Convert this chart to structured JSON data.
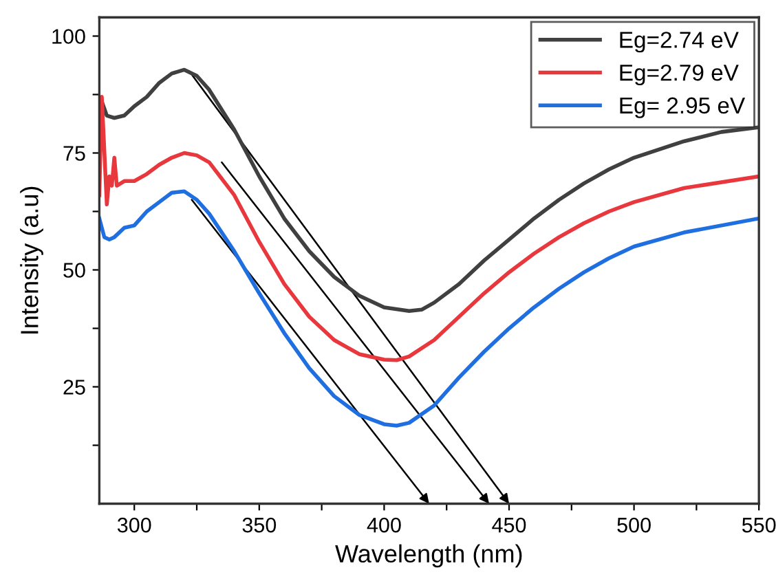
{
  "chart_data": {
    "type": "line",
    "xlabel": "Wavelength (nm)",
    "ylabel": "Intensity (a.u)",
    "xlim": [
      286,
      550
    ],
    "ylim": [
      0,
      104
    ],
    "xticks": [
      300,
      {
        "value": 325,
        "label": null
      },
      350,
      {
        "value": 375,
        "label": null
      },
      400,
      {
        "value": 425,
        "label": null
      },
      450,
      {
        "value": 475,
        "label": null
      },
      500,
      {
        "value": 525,
        "label": null
      },
      550
    ],
    "yticks": [
      {
        "value": 12.5,
        "label": null
      },
      25,
      {
        "value": 37.5,
        "label": null
      },
      50,
      {
        "value": 62.5,
        "label": null
      },
      75,
      {
        "value": 87.5,
        "label": null
      },
      100
    ],
    "legend": "top right",
    "grid": false,
    "series": [
      {
        "name": "Eg=2.74 eV",
        "color": "#404040",
        "x": [
          287,
          289,
          292,
          296,
          300,
          305,
          310,
          315,
          320,
          325,
          330,
          340,
          350,
          360,
          370,
          380,
          390,
          400,
          410,
          415,
          420,
          430,
          440,
          450,
          460,
          470,
          480,
          490,
          500,
          520,
          535,
          550
        ],
        "values": [
          86,
          83,
          82.5,
          83,
          85,
          87,
          90,
          92,
          92.8,
          91.5,
          88.5,
          80,
          70,
          61,
          54,
          48.5,
          44.5,
          42,
          41.2,
          41.5,
          43,
          47,
          52,
          56.5,
          61,
          65,
          68.5,
          71.5,
          74,
          77.5,
          79.5,
          80.5
        ]
      },
      {
        "name": "Eg=2.79 eV",
        "color": "#e8383d",
        "x": [
          286,
          287,
          289,
          290,
          291,
          292,
          293,
          296,
          300,
          305,
          310,
          315,
          320,
          325,
          330,
          340,
          350,
          360,
          370,
          380,
          390,
          400,
          405,
          410,
          420,
          430,
          440,
          450,
          460,
          470,
          480,
          490,
          500,
          520,
          550
        ],
        "values": [
          66,
          87,
          64,
          70,
          68,
          74,
          68,
          69,
          69,
          70.5,
          72.5,
          74,
          75,
          74.5,
          73,
          66,
          56,
          47,
          40,
          35,
          32,
          30.8,
          30.7,
          31.5,
          35,
          40,
          45,
          49.5,
          53.5,
          57,
          60,
          62.5,
          64.5,
          67.5,
          70
        ]
      },
      {
        "name": "Eg= 2.95 eV",
        "color": "#1f6fe0",
        "x": [
          286,
          288,
          290,
          292,
          296,
          300,
          305,
          310,
          315,
          320,
          325,
          330,
          340,
          350,
          360,
          370,
          380,
          390,
          400,
          405,
          410,
          420,
          430,
          440,
          450,
          460,
          470,
          480,
          490,
          500,
          520,
          550
        ],
        "values": [
          61,
          57,
          56.5,
          57,
          59,
          59.5,
          62.5,
          64.5,
          66.5,
          66.8,
          65,
          62,
          54,
          45,
          36.5,
          29,
          23,
          19,
          17,
          16.7,
          17.3,
          21,
          27,
          32.5,
          37.5,
          42,
          46,
          49.5,
          52.5,
          55,
          58,
          61
        ]
      }
    ]
  }
}
